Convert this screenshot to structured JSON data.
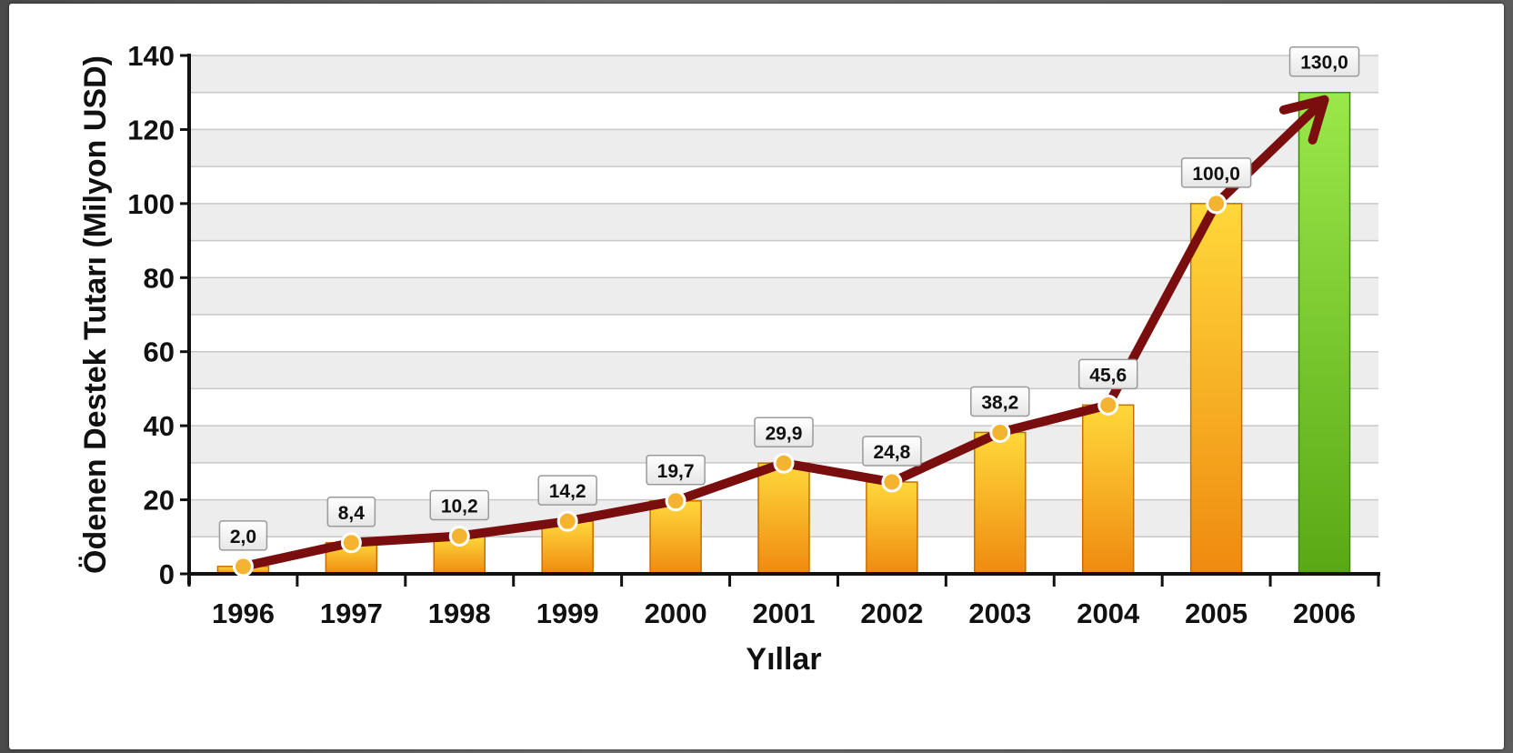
{
  "chart_data": {
    "type": "bar",
    "title": "",
    "xlabel": "Yıllar",
    "ylabel": "Ödenen Destek Tutarı (Milyon USD)",
    "categories": [
      "1996",
      "1997",
      "1998",
      "1999",
      "2000",
      "2001",
      "2002",
      "2003",
      "2004",
      "2005",
      "2006"
    ],
    "values": [
      2.0,
      8.4,
      10.2,
      14.2,
      19.7,
      29.9,
      24.8,
      38.2,
      45.6,
      100.0,
      130.0
    ],
    "value_labels": [
      "2,0",
      "8,4",
      "10,2",
      "14,2",
      "19,7",
      "29,9",
      "24,8",
      "38,2",
      "45,6",
      "100,0",
      "130,0"
    ],
    "ylim": [
      0,
      140
    ],
    "yticks": [
      "0",
      "20",
      "40",
      "60",
      "80",
      "100",
      "120",
      "140"
    ],
    "grid": true,
    "overlay_line": true,
    "overlay_arrow_end": true,
    "colors": {
      "bar_top": "#ffd83a",
      "bar_bottom": "#ef8a10",
      "bar_edge": "#c86e00",
      "highlight_bar_top": "#9be84a",
      "highlight_bar_bottom": "#5aa815",
      "highlight_bar_edge": "#3e8a10",
      "line": "#7a0d0d",
      "marker_fill": "#f5b430",
      "marker_stroke": "#ffffff",
      "band": "#ededed",
      "gridline": "#c8c8c8"
    }
  }
}
